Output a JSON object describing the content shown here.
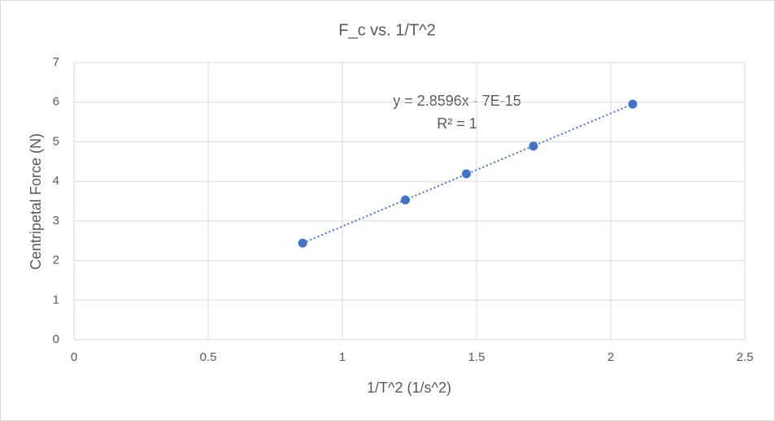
{
  "chart_data": {
    "type": "scatter",
    "title": "F_c vs. 1/T^2",
    "x_label": "1/T^2 (1/s^2)",
    "y_label": "Centripetal Force (N)",
    "x": [
      0.852,
      1.235,
      1.462,
      1.712,
      2.082
    ],
    "values": [
      2.44,
      3.53,
      4.19,
      4.89,
      5.95
    ],
    "color": "#4472c4",
    "trendline": {
      "equation": "y = 2.8596x - 7E-15",
      "r_squared": "R² = 1"
    },
    "xlim": [
      0,
      2.5
    ],
    "xticks": [
      0,
      0.5,
      1,
      1.5,
      2,
      2.5
    ],
    "ylim": [
      0,
      7
    ],
    "yticks": [
      0,
      1,
      2,
      3,
      4,
      5,
      6,
      7
    ],
    "grid": true
  }
}
